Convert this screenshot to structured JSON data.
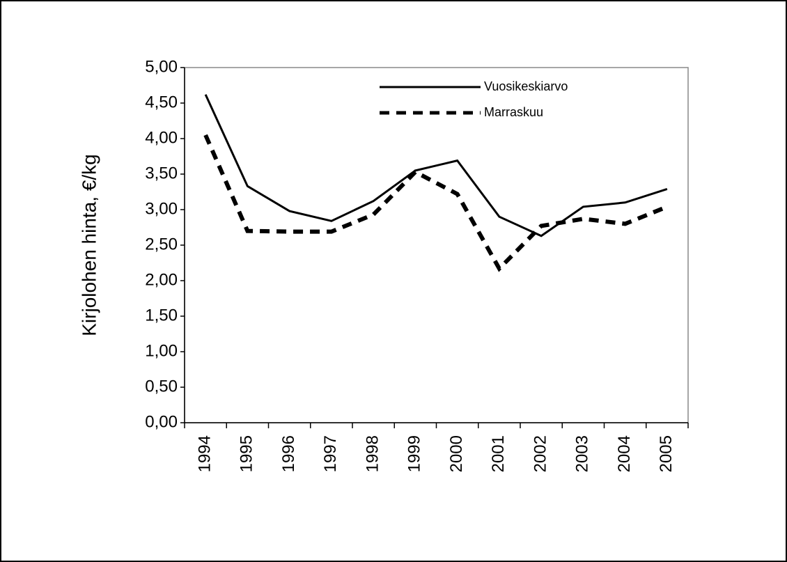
{
  "chart_data": {
    "type": "line",
    "y_label": "Kirjolohen hinta, €/kg",
    "categories": [
      "1994",
      "1995",
      "1996",
      "1997",
      "1998",
      "1999",
      "2000",
      "2001",
      "2002",
      "2003",
      "2004",
      "2005"
    ],
    "series": [
      {
        "name": "Vuosikeskiarvo",
        "color": "#000000",
        "dash": "solid",
        "values": [
          4.62,
          3.33,
          2.98,
          2.84,
          3.12,
          3.55,
          3.69,
          2.9,
          2.63,
          3.04,
          3.1,
          3.29
        ]
      },
      {
        "name": "Marraskuu",
        "color": "#000000",
        "dash": "dashed",
        "values": [
          4.05,
          2.7,
          2.69,
          2.69,
          2.93,
          3.53,
          3.22,
          2.17,
          2.77,
          2.87,
          2.8,
          3.04
        ]
      }
    ],
    "ylim": [
      0,
      5
    ],
    "yticks": [
      {
        "value": 0,
        "label": "0,00"
      },
      {
        "value": 0.5,
        "label": "0,50"
      },
      {
        "value": 1,
        "label": "1,00"
      },
      {
        "value": 1.5,
        "label": "1,50"
      },
      {
        "value": 2,
        "label": "2,00"
      },
      {
        "value": 2.5,
        "label": "2,50"
      },
      {
        "value": 3,
        "label": "3,00"
      },
      {
        "value": 3.5,
        "label": "3,50"
      },
      {
        "value": 4,
        "label": "4,00"
      },
      {
        "value": 4.5,
        "label": "4,50"
      },
      {
        "value": 5,
        "label": "5,00"
      }
    ],
    "grid": false,
    "legend": "top"
  }
}
